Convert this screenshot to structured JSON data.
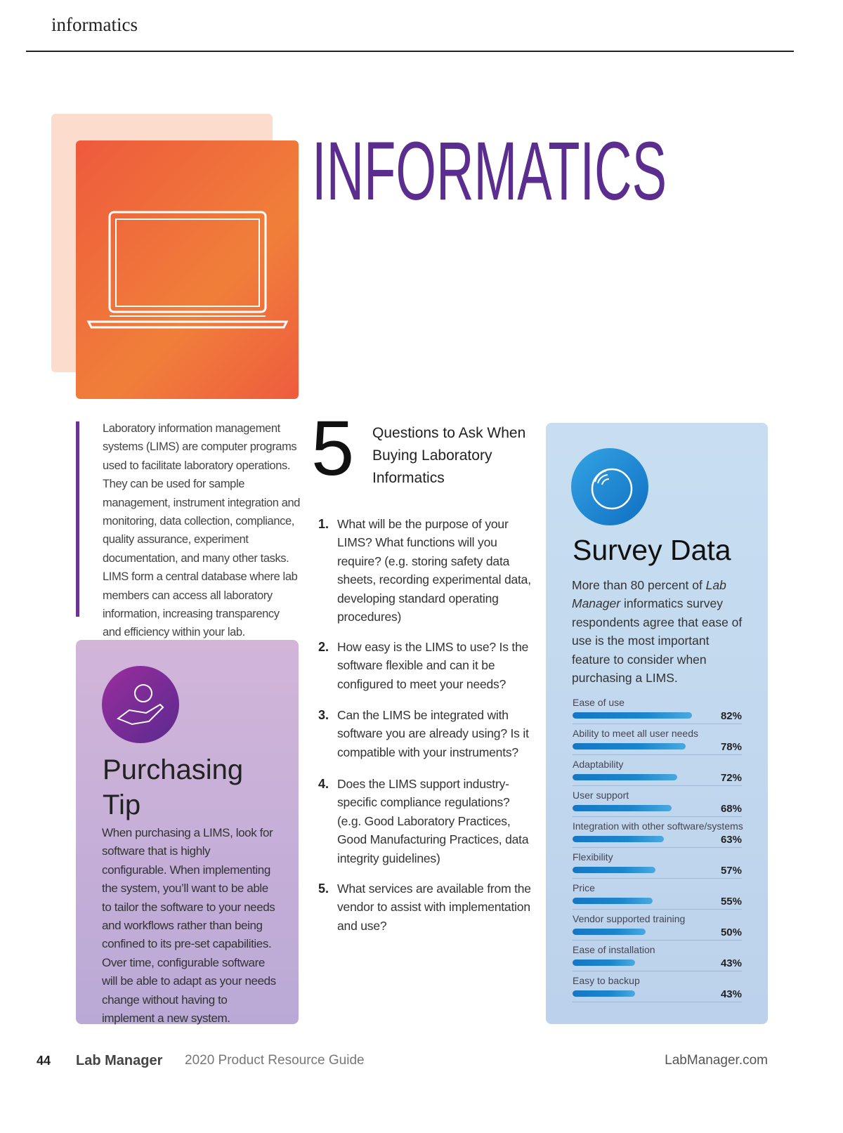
{
  "header": {
    "section": "informatics"
  },
  "hero": {
    "title": "INFORMATICS"
  },
  "intro": {
    "text": "Laboratory information management systems (LIMS) are computer programs used to facilitate laboratory operations. They can be used for sample management, instrument integration and monitoring, data collection, compliance, quality assurance, experiment documentation, and many other tasks. LIMS form a central database where lab members can access all laboratory information, increasing transparency and efficiency within your lab."
  },
  "tip": {
    "title": "Purchasing Tip",
    "text": "When purchasing a LIMS, look for software that is highly configurable. When implementing the system, you’ll want to be able to tailor the software to your needs and workflows rather than being confined to its pre-set capabilities. Over time, configurable software will be able to adapt as your needs change without having to implement a new system."
  },
  "questions": {
    "number": "5",
    "title": "Questions to Ask When Buying Laboratory Informatics",
    "items": [
      {
        "number": "1.",
        "text": "What will be the purpose of your LIMS? What functions will you require? (e.g. storing safety data sheets, recording experimental data, developing standard operating procedures)"
      },
      {
        "number": "2.",
        "text": "How easy is the LIMS to use? Is the software flexible and can it be configured to meet your needs?"
      },
      {
        "number": "3.",
        "text": "Can the LIMS be integrated with software you are already using? Is it compatible with your instruments?"
      },
      {
        "number": "4.",
        "text": "Does the LIMS support industry-specific compliance regulations? (e.g. Good Laboratory Practices, Good Manufacturing Practices, data integrity guidelines)"
      },
      {
        "number": "5.",
        "text": "What services are available from the vendor to assist with implementation and use?"
      }
    ]
  },
  "survey": {
    "title": "Survey Data",
    "text_parts": [
      "More than 80 percent of ",
      "Lab Manager",
      " informatics survey respondents agree that ease of use is the most important feature to consider when purchasing a LIMS."
    ],
    "categories": [
      "Ease of use",
      "Ability to meet all user needs",
      "Adaptability",
      "User support",
      "Integration with other software/systems",
      "Flexibility",
      "Price",
      "Vendor supported training",
      "Ease of installation",
      "Easy to backup"
    ],
    "values": [
      82,
      78,
      72,
      68,
      63,
      57,
      55,
      50,
      43,
      43
    ],
    "value_labels": [
      "82%",
      "78%",
      "72%",
      "68%",
      "63%",
      "57%",
      "55%",
      "50%",
      "43%",
      "43%"
    ],
    "color": "#1b86cc"
  },
  "footer": {
    "page": "44",
    "brand": "Lab Manager",
    "guide": "2020 Product Resource Guide",
    "site": "LabManager.com"
  }
}
